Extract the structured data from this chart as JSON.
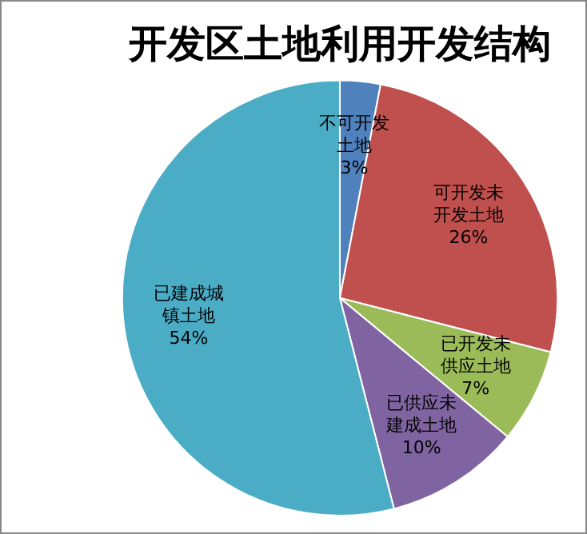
{
  "chart_data": {
    "type": "pie",
    "title": "开发区土地利用开发结构",
    "categories": [
      "不可开发土地",
      "可开发未开发土地",
      "已开发未供应土地",
      "已供应未建成土地",
      "已建成城镇土地"
    ],
    "values": [
      3,
      26,
      7,
      10,
      54
    ],
    "colors": [
      "#4f81bd",
      "#c0504d",
      "#9bbb59",
      "#8064a2",
      "#4bacc6"
    ],
    "value_labels": [
      "3%",
      "26%",
      "7%",
      "10%",
      "54%"
    ],
    "legend": false
  }
}
